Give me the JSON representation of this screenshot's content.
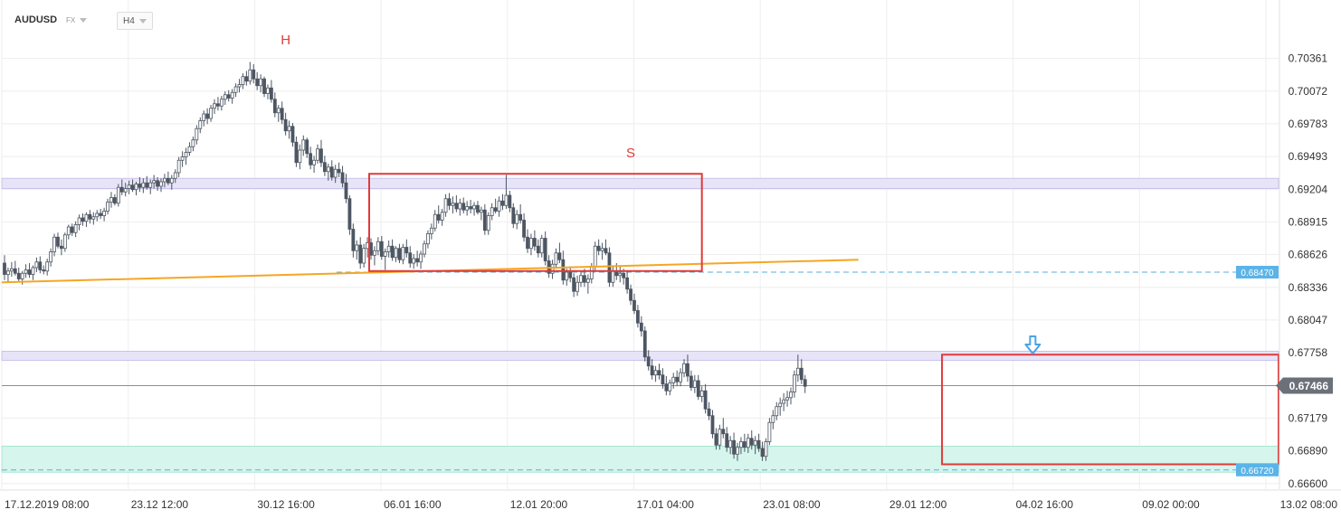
{
  "header": {
    "symbol": "AUDUSD",
    "market": "FX",
    "timeframe": "H4"
  },
  "annotations": {
    "head": "H",
    "shoulder": "S"
  },
  "colors": {
    "bull": "#ffffff",
    "bear": "#4d5662",
    "wick": "#4d5662",
    "trendline": "#f5a623",
    "box": "#e03a3a",
    "resistance_band": "#e8e4f8",
    "support_band": "#d6f5ec",
    "ref_line": "#5aaee0",
    "arrow": "#4aa3e8",
    "current_price_bg": "#6b7079",
    "level_badge_bg": "#5ab4e8"
  },
  "chart_data": {
    "type": "candlestick",
    "ylim": [
      0.6655,
      0.7059
    ],
    "y_ticks": [
      "0.70361",
      "0.70072",
      "0.69783",
      "0.69493",
      "0.69204",
      "0.68915",
      "0.68626",
      "0.68336",
      "0.68047",
      "0.67758",
      "0.67466",
      "0.67179",
      "0.66890",
      "0.66600"
    ],
    "x_ticks": [
      "17.12.2019  08:00",
      "23.12  12:00",
      "30.12  16:00",
      "06.01  16:00",
      "12.01  20:00",
      "17.01  04:00",
      "23.01  08:00",
      "29.01  12:00",
      "04.02  16:00",
      "09.02  00:00",
      "13.02  08:00"
    ],
    "current_price": "0.67466",
    "levels": [
      {
        "label": "0.68470",
        "value": 0.6847
      },
      {
        "label": "0.66720",
        "value": 0.6672
      }
    ],
    "resistance_band_upper": [
      0.693,
      0.6921
    ],
    "resistance_band_lower": [
      0.6777,
      0.6769
    ],
    "support_band": [
      0.667,
      0.6693
    ],
    "trendline": {
      "x0": 0,
      "y0": 0.6838,
      "x1": 240,
      "y1": 0.6858
    },
    "rect_shoulder": {
      "x0": 103,
      "x1": 196,
      "y_top": 0.6934,
      "y_bottom": 0.6848
    },
    "rect_current": {
      "x0": 264,
      "x1": 362,
      "y_top": 0.6774,
      "y_bottom": 0.6677
    },
    "candles": [
      [
        0.6855,
        0.6862,
        0.684,
        0.6845
      ],
      [
        0.6845,
        0.6851,
        0.6838,
        0.6848
      ],
      [
        0.6848,
        0.6856,
        0.6843,
        0.685
      ],
      [
        0.685,
        0.6857,
        0.6844,
        0.6846
      ],
      [
        0.6846,
        0.6851,
        0.6838,
        0.6841
      ],
      [
        0.6841,
        0.6848,
        0.6836,
        0.6846
      ],
      [
        0.6846,
        0.6854,
        0.6842,
        0.6849
      ],
      [
        0.6849,
        0.6855,
        0.6842,
        0.6845
      ],
      [
        0.6845,
        0.6853,
        0.684,
        0.6851
      ],
      [
        0.6851,
        0.686,
        0.6847,
        0.6856
      ],
      [
        0.6856,
        0.6861,
        0.6846,
        0.6849
      ],
      [
        0.6849,
        0.6853,
        0.6845,
        0.6848
      ],
      [
        0.6848,
        0.6859,
        0.6844,
        0.6856
      ],
      [
        0.6856,
        0.6868,
        0.6852,
        0.6865
      ],
      [
        0.6865,
        0.6881,
        0.6861,
        0.6878
      ],
      [
        0.6878,
        0.6882,
        0.6868,
        0.687
      ],
      [
        0.687,
        0.6876,
        0.6862,
        0.6868
      ],
      [
        0.6868,
        0.6882,
        0.6865,
        0.688
      ],
      [
        0.688,
        0.6889,
        0.6876,
        0.6887
      ],
      [
        0.6887,
        0.689,
        0.6879,
        0.6882
      ],
      [
        0.6882,
        0.6892,
        0.6878,
        0.6889
      ],
      [
        0.6889,
        0.6898,
        0.6884,
        0.6895
      ],
      [
        0.6895,
        0.6899,
        0.6888,
        0.6892
      ],
      [
        0.6892,
        0.69,
        0.6887,
        0.6898
      ],
      [
        0.6898,
        0.6902,
        0.689,
        0.6894
      ],
      [
        0.6894,
        0.69,
        0.6889,
        0.6896
      ],
      [
        0.6896,
        0.6902,
        0.6892,
        0.6899
      ],
      [
        0.6899,
        0.6903,
        0.6894,
        0.6897
      ],
      [
        0.6897,
        0.6904,
        0.6892,
        0.6901
      ],
      [
        0.6901,
        0.6912,
        0.6898,
        0.6909
      ],
      [
        0.6909,
        0.6918,
        0.6904,
        0.6913
      ],
      [
        0.6913,
        0.6916,
        0.6906,
        0.6908
      ],
      [
        0.6908,
        0.6925,
        0.6905,
        0.6922
      ],
      [
        0.6922,
        0.6929,
        0.6915,
        0.6918
      ],
      [
        0.6918,
        0.6926,
        0.6914,
        0.6921
      ],
      [
        0.6921,
        0.6928,
        0.6916,
        0.6924
      ],
      [
        0.6924,
        0.6929,
        0.6918,
        0.692
      ],
      [
        0.692,
        0.6927,
        0.6915,
        0.6925
      ],
      [
        0.6925,
        0.6931,
        0.6918,
        0.6922
      ],
      [
        0.6922,
        0.693,
        0.6917,
        0.6926
      ],
      [
        0.6926,
        0.6932,
        0.692,
        0.6922
      ],
      [
        0.6922,
        0.6929,
        0.6916,
        0.6926
      ],
      [
        0.6926,
        0.6933,
        0.6921,
        0.6928
      ],
      [
        0.6928,
        0.6931,
        0.6919,
        0.6923
      ],
      [
        0.6923,
        0.693,
        0.6918,
        0.6927
      ],
      [
        0.6927,
        0.6934,
        0.6922,
        0.693
      ],
      [
        0.693,
        0.6936,
        0.6924,
        0.6926
      ],
      [
        0.6926,
        0.6933,
        0.692,
        0.693
      ],
      [
        0.693,
        0.6938,
        0.6926,
        0.6935
      ],
      [
        0.6935,
        0.6949,
        0.6931,
        0.6946
      ],
      [
        0.6946,
        0.6954,
        0.694,
        0.6949
      ],
      [
        0.6949,
        0.6957,
        0.6942,
        0.6953
      ],
      [
        0.6953,
        0.6962,
        0.695,
        0.6958
      ],
      [
        0.6958,
        0.6967,
        0.6954,
        0.6964
      ],
      [
        0.6964,
        0.6977,
        0.696,
        0.6974
      ],
      [
        0.6974,
        0.6984,
        0.697,
        0.6981
      ],
      [
        0.6981,
        0.699,
        0.6976,
        0.6987
      ],
      [
        0.6987,
        0.6992,
        0.6978,
        0.6983
      ],
      [
        0.6983,
        0.6995,
        0.698,
        0.6992
      ],
      [
        0.6992,
        0.7,
        0.6987,
        0.6996
      ],
      [
        0.6996,
        0.7002,
        0.699,
        0.6994
      ],
      [
        0.6994,
        0.7003,
        0.699,
        0.7
      ],
      [
        0.7,
        0.7007,
        0.6995,
        0.7004
      ],
      [
        0.7004,
        0.7008,
        0.6998,
        0.7001
      ],
      [
        0.7001,
        0.7009,
        0.6996,
        0.7006
      ],
      [
        0.7006,
        0.7014,
        0.7002,
        0.7011
      ],
      [
        0.7011,
        0.7018,
        0.7006,
        0.7013
      ],
      [
        0.7013,
        0.7023,
        0.7009,
        0.702
      ],
      [
        0.702,
        0.7025,
        0.7012,
        0.7016
      ],
      [
        0.7016,
        0.7033,
        0.7013,
        0.7026
      ],
      [
        0.7026,
        0.7031,
        0.7014,
        0.7018
      ],
      [
        0.7018,
        0.7024,
        0.7008,
        0.7012
      ],
      [
        0.7012,
        0.7022,
        0.7006,
        0.7018
      ],
      [
        0.7018,
        0.702,
        0.7002,
        0.7005
      ],
      [
        0.7005,
        0.7013,
        0.7,
        0.701
      ],
      [
        0.701,
        0.7017,
        0.6997,
        0.7
      ],
      [
        0.7,
        0.7006,
        0.6984,
        0.6988
      ],
      [
        0.6988,
        0.6995,
        0.698,
        0.6992
      ],
      [
        0.6992,
        0.6998,
        0.6978,
        0.6982
      ],
      [
        0.6982,
        0.6988,
        0.6968,
        0.6972
      ],
      [
        0.6972,
        0.6981,
        0.6965,
        0.6976
      ],
      [
        0.6976,
        0.6979,
        0.6958,
        0.6962
      ],
      [
        0.6962,
        0.6967,
        0.694,
        0.6944
      ],
      [
        0.6944,
        0.696,
        0.6938,
        0.6955
      ],
      [
        0.6955,
        0.6968,
        0.695,
        0.6964
      ],
      [
        0.6964,
        0.6966,
        0.6948,
        0.6952
      ],
      [
        0.6952,
        0.6958,
        0.6938,
        0.6942
      ],
      [
        0.6942,
        0.695,
        0.6935,
        0.6946
      ],
      [
        0.6946,
        0.696,
        0.6943,
        0.6956
      ],
      [
        0.6956,
        0.6964,
        0.694,
        0.6944
      ],
      [
        0.6944,
        0.695,
        0.6932,
        0.6936
      ],
      [
        0.6936,
        0.6943,
        0.6928,
        0.694
      ],
      [
        0.694,
        0.6946,
        0.6928,
        0.6931
      ],
      [
        0.6931,
        0.6942,
        0.6926,
        0.6938
      ],
      [
        0.6938,
        0.6944,
        0.6931,
        0.6935
      ],
      [
        0.6935,
        0.6941,
        0.6922,
        0.6926
      ],
      [
        0.6926,
        0.6934,
        0.6908,
        0.6912
      ],
      [
        0.6912,
        0.6915,
        0.688,
        0.6885
      ],
      [
        0.6885,
        0.689,
        0.686,
        0.6866
      ],
      [
        0.6866,
        0.6875,
        0.6858,
        0.6871
      ],
      [
        0.6871,
        0.6878,
        0.685,
        0.6855
      ],
      [
        0.6855,
        0.6872,
        0.6851,
        0.6868
      ],
      [
        0.6868,
        0.6878,
        0.686,
        0.6873
      ],
      [
        0.6873,
        0.6877,
        0.6858,
        0.6862
      ],
      [
        0.6862,
        0.687,
        0.6853,
        0.6866
      ],
      [
        0.6866,
        0.6878,
        0.6862,
        0.6874
      ],
      [
        0.6874,
        0.6879,
        0.6858,
        0.6861
      ],
      [
        0.6861,
        0.6868,
        0.6849,
        0.6865
      ],
      [
        0.6865,
        0.6875,
        0.686,
        0.687
      ],
      [
        0.687,
        0.6876,
        0.6857,
        0.686
      ],
      [
        0.686,
        0.687,
        0.6856,
        0.6868
      ],
      [
        0.6868,
        0.6872,
        0.6855,
        0.6858
      ],
      [
        0.6858,
        0.6872,
        0.6854,
        0.6869
      ],
      [
        0.6869,
        0.6876,
        0.686,
        0.6864
      ],
      [
        0.6864,
        0.687,
        0.6851,
        0.6855
      ],
      [
        0.6855,
        0.6863,
        0.685,
        0.6859
      ],
      [
        0.6859,
        0.6866,
        0.6852,
        0.6856
      ],
      [
        0.6856,
        0.6866,
        0.685,
        0.6863
      ],
      [
        0.6863,
        0.6875,
        0.686,
        0.6872
      ],
      [
        0.6872,
        0.6884,
        0.6868,
        0.6881
      ],
      [
        0.6881,
        0.689,
        0.6876,
        0.6886
      ],
      [
        0.6886,
        0.6902,
        0.6883,
        0.6898
      ],
      [
        0.6898,
        0.6906,
        0.689,
        0.6893
      ],
      [
        0.6893,
        0.6903,
        0.6888,
        0.69
      ],
      [
        0.69,
        0.6916,
        0.6896,
        0.6912
      ],
      [
        0.6912,
        0.6917,
        0.6902,
        0.6906
      ],
      [
        0.6906,
        0.6914,
        0.6899,
        0.6908
      ],
      [
        0.6908,
        0.6915,
        0.69,
        0.6903
      ],
      [
        0.6903,
        0.6912,
        0.6897,
        0.6908
      ],
      [
        0.6908,
        0.6913,
        0.6899,
        0.6902
      ],
      [
        0.6902,
        0.691,
        0.6897,
        0.6905
      ],
      [
        0.6905,
        0.6911,
        0.6899,
        0.6903
      ],
      [
        0.6903,
        0.6909,
        0.6897,
        0.6906
      ],
      [
        0.6906,
        0.691,
        0.6898,
        0.69
      ],
      [
        0.69,
        0.6905,
        0.6893,
        0.6902
      ],
      [
        0.6902,
        0.6907,
        0.688,
        0.6884
      ],
      [
        0.6884,
        0.69,
        0.688,
        0.6897
      ],
      [
        0.6897,
        0.6908,
        0.6893,
        0.6904
      ],
      [
        0.6904,
        0.6912,
        0.6899,
        0.6901
      ],
      [
        0.6901,
        0.6914,
        0.6896,
        0.691
      ],
      [
        0.691,
        0.6916,
        0.6902,
        0.6906
      ],
      [
        0.6906,
        0.6933,
        0.6903,
        0.6915
      ],
      [
        0.6915,
        0.6919,
        0.69,
        0.6904
      ],
      [
        0.6904,
        0.6908,
        0.6886,
        0.689
      ],
      [
        0.689,
        0.6902,
        0.6885,
        0.6898
      ],
      [
        0.6898,
        0.6907,
        0.689,
        0.6893
      ],
      [
        0.6893,
        0.6899,
        0.6874,
        0.6878
      ],
      [
        0.6878,
        0.6885,
        0.6864,
        0.6868
      ],
      [
        0.6868,
        0.6881,
        0.6862,
        0.6877
      ],
      [
        0.6877,
        0.6884,
        0.6866,
        0.687
      ],
      [
        0.687,
        0.6876,
        0.686,
        0.6864
      ],
      [
        0.6864,
        0.688,
        0.686,
        0.6877
      ],
      [
        0.6877,
        0.6883,
        0.6853,
        0.6857
      ],
      [
        0.6857,
        0.6862,
        0.6842,
        0.6846
      ],
      [
        0.6846,
        0.6858,
        0.6841,
        0.6854
      ],
      [
        0.6854,
        0.6868,
        0.685,
        0.6864
      ],
      [
        0.6864,
        0.6873,
        0.6855,
        0.6858
      ],
      [
        0.6858,
        0.6866,
        0.6836,
        0.684
      ],
      [
        0.684,
        0.685,
        0.6835,
        0.6847
      ],
      [
        0.6847,
        0.6852,
        0.6838,
        0.6842
      ],
      [
        0.6842,
        0.6846,
        0.6825,
        0.683
      ],
      [
        0.683,
        0.6844,
        0.6826,
        0.6838
      ],
      [
        0.6838,
        0.6848,
        0.6834,
        0.6844
      ],
      [
        0.6844,
        0.685,
        0.6834,
        0.6838
      ],
      [
        0.6838,
        0.6845,
        0.6828,
        0.6841
      ],
      [
        0.6841,
        0.6855,
        0.6837,
        0.6852
      ],
      [
        0.6852,
        0.6874,
        0.6848,
        0.687
      ],
      [
        0.687,
        0.6876,
        0.6862,
        0.6866
      ],
      [
        0.6866,
        0.6873,
        0.6858,
        0.6868
      ],
      [
        0.6868,
        0.6876,
        0.6862,
        0.6864
      ],
      [
        0.6864,
        0.6869,
        0.6834,
        0.6838
      ],
      [
        0.6838,
        0.6852,
        0.6834,
        0.6848
      ],
      [
        0.6848,
        0.6855,
        0.684,
        0.6844
      ],
      [
        0.6844,
        0.6852,
        0.6838,
        0.6846
      ],
      [
        0.6846,
        0.685,
        0.6836,
        0.6842
      ],
      [
        0.6842,
        0.6848,
        0.6828,
        0.6832
      ],
      [
        0.6832,
        0.6836,
        0.6818,
        0.6822
      ],
      [
        0.6822,
        0.6828,
        0.681,
        0.6813
      ],
      [
        0.6813,
        0.6818,
        0.6798,
        0.6802
      ],
      [
        0.6802,
        0.6808,
        0.679,
        0.6795
      ],
      [
        0.6795,
        0.6799,
        0.6768,
        0.6772
      ],
      [
        0.6772,
        0.6778,
        0.676,
        0.6764
      ],
      [
        0.6764,
        0.677,
        0.6752,
        0.6756
      ],
      [
        0.6756,
        0.6764,
        0.675,
        0.676
      ],
      [
        0.676,
        0.6766,
        0.6752,
        0.6756
      ],
      [
        0.6756,
        0.6762,
        0.6744,
        0.6748
      ],
      [
        0.6748,
        0.6755,
        0.6738,
        0.6742
      ],
      [
        0.6742,
        0.6752,
        0.6738,
        0.6749
      ],
      [
        0.6749,
        0.6758,
        0.6744,
        0.6754
      ],
      [
        0.6754,
        0.676,
        0.6746,
        0.675
      ],
      [
        0.675,
        0.6762,
        0.6746,
        0.6758
      ],
      [
        0.6758,
        0.677,
        0.6754,
        0.6766
      ],
      [
        0.6766,
        0.6774,
        0.675,
        0.6755
      ],
      [
        0.6755,
        0.676,
        0.6742,
        0.6745
      ],
      [
        0.6745,
        0.6756,
        0.674,
        0.6751
      ],
      [
        0.6751,
        0.6756,
        0.6734,
        0.6737
      ],
      [
        0.6737,
        0.6746,
        0.6732,
        0.6742
      ],
      [
        0.6742,
        0.6748,
        0.6722,
        0.6726
      ],
      [
        0.6726,
        0.6732,
        0.6716,
        0.672
      ],
      [
        0.672,
        0.6725,
        0.67,
        0.6704
      ],
      [
        0.6704,
        0.6709,
        0.669,
        0.6694
      ],
      [
        0.6694,
        0.6712,
        0.669,
        0.6708
      ],
      [
        0.6708,
        0.6718,
        0.67,
        0.6704
      ],
      [
        0.6704,
        0.671,
        0.6688,
        0.6692
      ],
      [
        0.6692,
        0.6702,
        0.6686,
        0.6698
      ],
      [
        0.6698,
        0.6705,
        0.6682,
        0.6686
      ],
      [
        0.6686,
        0.6696,
        0.668,
        0.6692
      ],
      [
        0.6692,
        0.6701,
        0.6686,
        0.6697
      ],
      [
        0.6697,
        0.6704,
        0.6688,
        0.6692
      ],
      [
        0.6692,
        0.6704,
        0.6687,
        0.67
      ],
      [
        0.67,
        0.6707,
        0.669,
        0.6694
      ],
      [
        0.6694,
        0.6702,
        0.6686,
        0.6698
      ],
      [
        0.6698,
        0.6704,
        0.6688,
        0.6691
      ],
      [
        0.6691,
        0.6697,
        0.668,
        0.6684
      ],
      [
        0.6684,
        0.67,
        0.668,
        0.6697
      ],
      [
        0.6697,
        0.6718,
        0.6694,
        0.6714
      ],
      [
        0.6714,
        0.6725,
        0.6708,
        0.672
      ],
      [
        0.672,
        0.6732,
        0.6716,
        0.6728
      ],
      [
        0.6728,
        0.6736,
        0.672,
        0.6731
      ],
      [
        0.6731,
        0.674,
        0.6724,
        0.6734
      ],
      [
        0.6734,
        0.6742,
        0.6728,
        0.6736
      ],
      [
        0.6736,
        0.6745,
        0.673,
        0.6741
      ],
      [
        0.6741,
        0.676,
        0.6736,
        0.6756
      ],
      [
        0.6756,
        0.6774,
        0.675,
        0.6762
      ],
      [
        0.6762,
        0.677,
        0.6748,
        0.6752
      ],
      [
        0.6752,
        0.6756,
        0.674,
        0.6746
      ]
    ]
  }
}
